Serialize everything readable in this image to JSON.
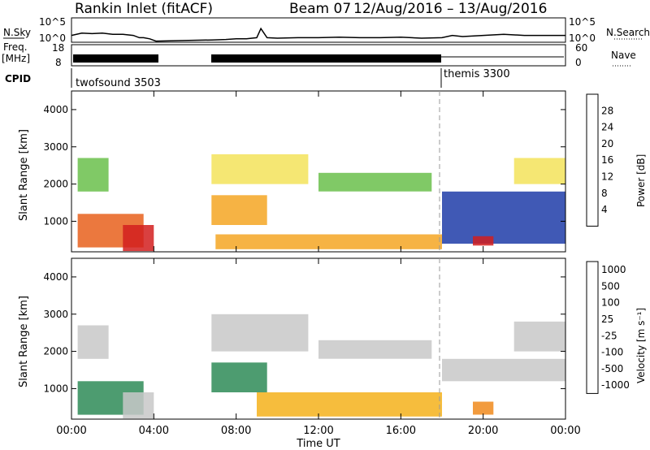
{
  "header": {
    "station": "Rankin Inlet (fitACF)",
    "beam": "Beam 07",
    "dates": "12/Aug/2016 – 13/Aug/2016"
  },
  "colors": {
    "ink": "#000000",
    "gray_guide": "#999999"
  },
  "chart_data": [
    {
      "type": "line",
      "panel": "noise",
      "left_label": "N.Sky",
      "right_label": "N.Search",
      "left_ticks": [
        "10^5",
        "10^0"
      ],
      "right_ticks": [
        "10^5",
        "10^0"
      ],
      "xlim": [
        0,
        24
      ],
      "series": [
        {
          "name": "N.Sky",
          "x": [
            0,
            0.5,
            1,
            1.5,
            2,
            2.5,
            3,
            3.3,
            3.5,
            3.8,
            4.1,
            6.8,
            7.5,
            8,
            8.5,
            9,
            9.2,
            9.5,
            10,
            11,
            12,
            13,
            14,
            15,
            16,
            17,
            18,
            18.5,
            19,
            20,
            21,
            22,
            23,
            24
          ],
          "y": [
            0.3,
            0.4,
            0.38,
            0.4,
            0.35,
            0.35,
            0.3,
            0.2,
            0.2,
            0.15,
            0.05,
            0.1,
            0.12,
            0.15,
            0.15,
            0.2,
            0.6,
            0.2,
            0.18,
            0.2,
            0.2,
            0.22,
            0.2,
            0.2,
            0.22,
            0.18,
            0.2,
            0.3,
            0.25,
            0.3,
            0.35,
            0.3,
            0.3,
            0.3
          ]
        }
      ]
    },
    {
      "type": "line",
      "panel": "frequency",
      "left_label_top": "Freq.",
      "left_label_bottom": "[MHz]",
      "right_label": "Nave",
      "left_ticks": [
        "18",
        "8"
      ],
      "right_ticks": [
        "60",
        "0"
      ],
      "xlim": [
        0,
        24
      ],
      "notes": "frequency ~ 11 MHz plateau 00:00–04:05 and 06:50–18:00; Nave ~ 25 after 18:00"
    },
    {
      "type": "table",
      "panel": "cpid",
      "label": "CPID",
      "segments": [
        {
          "start": 0,
          "end": 18,
          "name": "twofsound 3503"
        },
        {
          "start": 18,
          "end": 24,
          "name": "themis 3300"
        }
      ]
    },
    {
      "type": "heatmap",
      "panel": "power",
      "ylabel": "Slant Range [km]",
      "yticks": [
        "1000",
        "2000",
        "3000",
        "4000"
      ],
      "ylim": [
        180,
        4500
      ],
      "xlim": [
        0,
        24
      ],
      "colorbar_label": "Power [dB]",
      "colorbar_ticks": [
        "4",
        "8",
        "12",
        "16",
        "20",
        "24",
        "28"
      ],
      "colorbar_range": [
        0,
        30
      ],
      "colors": [
        "#0000ff",
        "#1f3ca8",
        "#2e8b57",
        "#6abf4b",
        "#f3e35b",
        "#f5a623",
        "#e8601c",
        "#d21f1f"
      ],
      "regions": [
        {
          "x0": 0.3,
          "x1": 1.8,
          "y0": 1800,
          "y1": 2700,
          "level": 3
        },
        {
          "x0": 0.3,
          "x1": 3.5,
          "y0": 300,
          "y1": 1200,
          "level": 6
        },
        {
          "x0": 2.5,
          "x1": 4.0,
          "y0": 200,
          "y1": 900,
          "level": 7
        },
        {
          "x0": 6.8,
          "x1": 11.5,
          "y0": 2000,
          "y1": 2800,
          "level": 4
        },
        {
          "x0": 6.8,
          "x1": 9.5,
          "y0": 900,
          "y1": 1700,
          "level": 5
        },
        {
          "x0": 7.0,
          "x1": 18.0,
          "y0": 250,
          "y1": 650,
          "level": 5
        },
        {
          "x0": 12.0,
          "x1": 17.5,
          "y0": 1800,
          "y1": 2300,
          "level": 3
        },
        {
          "x0": 18.0,
          "x1": 24.0,
          "y0": 400,
          "y1": 1800,
          "level": 1
        },
        {
          "x0": 19.5,
          "x1": 20.5,
          "y0": 350,
          "y1": 600,
          "level": 7
        },
        {
          "x0": 21.5,
          "x1": 24.0,
          "y0": 2000,
          "y1": 2700,
          "level": 4
        }
      ]
    },
    {
      "type": "heatmap",
      "panel": "velocity",
      "ylabel": "Slant Range [km]",
      "yticks": [
        "1000",
        "2000",
        "3000",
        "4000"
      ],
      "ylim": [
        180,
        4500
      ],
      "xlim": [
        0,
        24
      ],
      "colorbar_label": "Velocity [m s⁻¹]",
      "colorbar_ticks": [
        "1000",
        "500",
        "100",
        "25",
        "-25",
        "-100",
        "-500",
        "-1000"
      ],
      "colors": [
        "#1f4fb0",
        "#2e8b57",
        "#6abf4b",
        "#c8c8c8",
        "#c8c8c8",
        "#f5b11b",
        "#f08a1c",
        "#e02020"
      ],
      "regions": [
        {
          "x0": 0.3,
          "x1": 1.8,
          "y0": 1800,
          "y1": 2700,
          "level": 3
        },
        {
          "x0": 0.3,
          "x1": 3.5,
          "y0": 300,
          "y1": 1200,
          "level": 1
        },
        {
          "x0": 2.5,
          "x1": 4.0,
          "y0": 200,
          "y1": 900,
          "level": 3
        },
        {
          "x0": 6.8,
          "x1": 11.5,
          "y0": 2000,
          "y1": 3000,
          "level": 3
        },
        {
          "x0": 6.8,
          "x1": 9.5,
          "y0": 900,
          "y1": 1700,
          "level": 1
        },
        {
          "x0": 9.0,
          "x1": 18.0,
          "y0": 250,
          "y1": 900,
          "level": 5
        },
        {
          "x0": 12.0,
          "x1": 17.5,
          "y0": 1800,
          "y1": 2300,
          "level": 3
        },
        {
          "x0": 18.0,
          "x1": 24.0,
          "y0": 1200,
          "y1": 1800,
          "level": 3
        },
        {
          "x0": 19.5,
          "x1": 20.5,
          "y0": 300,
          "y1": 650,
          "level": 6
        },
        {
          "x0": 21.5,
          "x1": 24.0,
          "y0": 2000,
          "y1": 2800,
          "level": 3
        }
      ]
    },
    {
      "type": "axis",
      "panel": "time-axis",
      "xlabel": "Time UT",
      "xticks": [
        "00:00",
        "04:00",
        "08:00",
        "12:00",
        "16:00",
        "20:00",
        "00:00"
      ],
      "xlim": [
        0,
        24
      ]
    }
  ]
}
